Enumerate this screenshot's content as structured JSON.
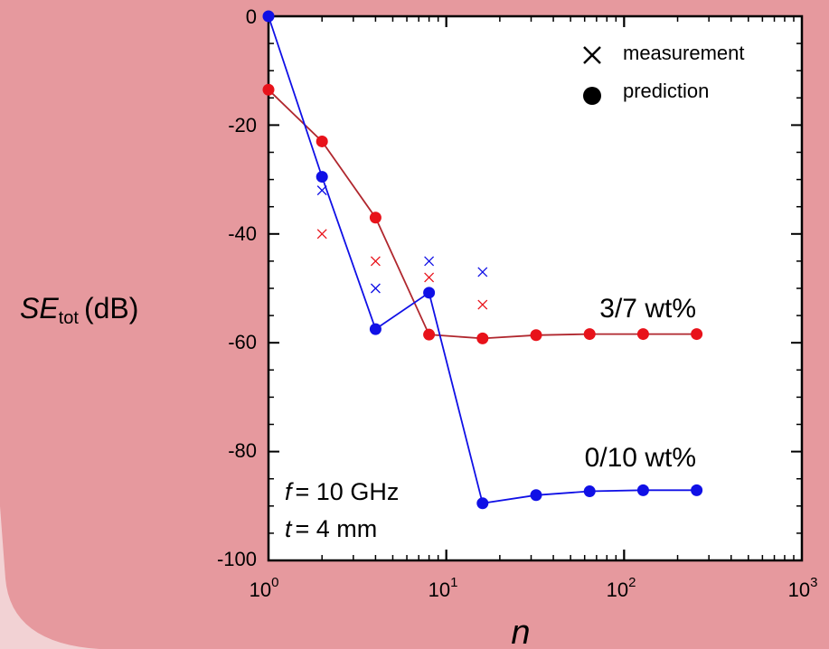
{
  "colors": {
    "background_card": "#e6999e",
    "background_light": "#f2d2d4",
    "plot_bg": "#ffffff",
    "series_red": "#e8121a",
    "series_red_line": "#b0272e",
    "series_red_label": "#b00000",
    "series_blue": "#1010e6",
    "series_blue_label": "#1010e6"
  },
  "chart_data": {
    "type": "scatter",
    "xscale": "log",
    "xlim": [
      1,
      1000
    ],
    "ylim": [
      -100,
      0
    ],
    "xlabel": "n",
    "ylabel": {
      "main": "SE",
      "sub": "tot",
      "unit": "(dB)"
    },
    "x_ticks": [
      {
        "base": "10",
        "exp": "0",
        "value": 1
      },
      {
        "base": "10",
        "exp": "1",
        "value": 10
      },
      {
        "base": "10",
        "exp": "2",
        "value": 100
      },
      {
        "base": "10",
        "exp": "3",
        "value": 1000
      }
    ],
    "y_ticks": [
      "0",
      "-20",
      "-40",
      "-60",
      "-80",
      "-100"
    ],
    "y_tick_values": [
      0,
      -20,
      -40,
      -60,
      -80,
      -100
    ],
    "legend": {
      "position": "top-right",
      "entries": [
        {
          "marker": "cross",
          "label": "measurement"
        },
        {
          "marker": "dot",
          "label": "prediction"
        }
      ]
    },
    "annotations": {
      "f_var": "f",
      "f_value": "= 10 GHz",
      "t_var": "t",
      "t_value": "= 4 mm"
    },
    "series": [
      {
        "name": "3/7 wt%",
        "color": "red",
        "prediction": {
          "x": [
            1,
            2,
            4,
            8,
            16,
            32,
            64,
            128,
            256
          ],
          "y": [
            -13.5,
            -23,
            -37,
            -58.5,
            -59.2,
            -58.6,
            -58.4,
            -58.4,
            -58.4
          ]
        },
        "measurement": {
          "x": [
            2,
            4,
            8,
            16
          ],
          "y": [
            -40,
            -45,
            -48,
            -53
          ]
        }
      },
      {
        "name": "0/10 wt%",
        "color": "blue",
        "prediction": {
          "x": [
            1,
            2,
            4,
            8,
            16,
            32,
            64,
            128,
            256
          ],
          "y": [
            0,
            -29.5,
            -57.5,
            -50.8,
            -89.5,
            -88,
            -87.3,
            -87.1,
            -87.1
          ]
        },
        "measurement": {
          "x": [
            2,
            4,
            8,
            16
          ],
          "y": [
            -32,
            -50,
            -45,
            -47
          ]
        }
      }
    ]
  }
}
